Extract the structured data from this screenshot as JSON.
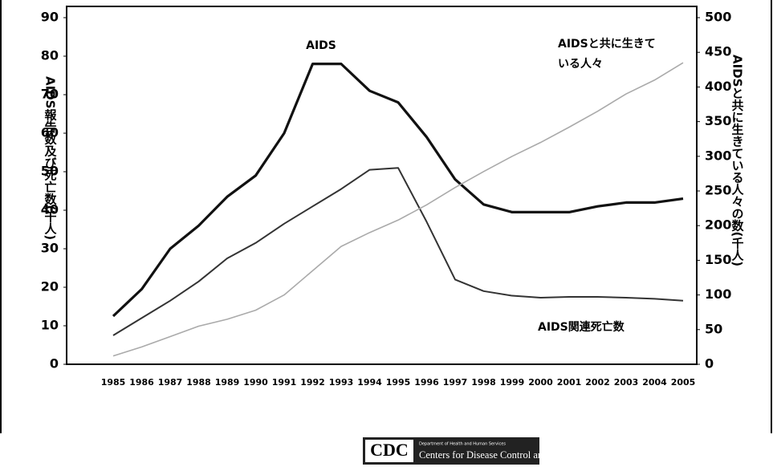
{
  "chart_data": {
    "type": "line",
    "categories": [
      "1985",
      "1986",
      "1987",
      "1988",
      "1989",
      "1990",
      "1991",
      "1992",
      "1993",
      "1994",
      "1995",
      "1996",
      "1997",
      "1998",
      "1999",
      "2000",
      "2001",
      "2002",
      "2003",
      "2004",
      "2005"
    ],
    "y_label": "AIDS報告数及び死亡数(千人)",
    "y2_label": "AIDSと共に生きている人々の数(千人)",
    "ylim": [
      0,
      90
    ],
    "yticks": [
      0,
      10,
      20,
      30,
      40,
      50,
      60,
      70,
      80,
      90
    ],
    "y2lim": [
      0,
      500
    ],
    "y2ticks": [
      0,
      50,
      100,
      150,
      200,
      250,
      300,
      350,
      400,
      450,
      500
    ],
    "series": [
      {
        "name": "AIDS",
        "color": "#111111",
        "values": [
          12.5,
          19.5,
          30,
          36,
          43.5,
          49,
          60,
          78,
          78,
          71,
          68,
          59,
          48,
          41.5,
          39.5,
          39.5,
          39.5,
          41,
          42,
          42,
          43
        ]
      },
      {
        "name": "AIDS関連死亡数",
        "color": "#333333",
        "values": [
          7.5,
          12,
          16.5,
          21.5,
          27.5,
          31.5,
          36.5,
          41,
          45.5,
          50.5,
          51,
          37,
          22,
          19,
          17.8,
          17.3,
          17.5,
          17.5,
          17.3,
          17,
          16.5
        ]
      },
      {
        "name": "AIDSと共に生きている人々",
        "name_lines": [
          "AIDSと共に生きて",
          "いる人々"
        ],
        "color": "#aaaaaa",
        "axis": "y2",
        "values": [
          12,
          25,
          40,
          55,
          65,
          78,
          100,
          135,
          170,
          190,
          208,
          230,
          255,
          278,
          300,
          320,
          342,
          365,
          390,
          410,
          435
        ]
      }
    ],
    "footer": {
      "logo": "CDC",
      "department": "Department of Health and Human Services",
      "agency": "Centers for Disease Control and Prevention"
    }
  }
}
